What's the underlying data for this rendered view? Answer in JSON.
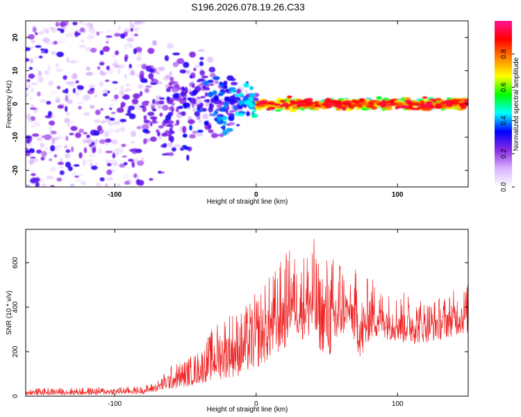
{
  "title": "S196.2026.078.19.26.C33",
  "chart_data": [
    {
      "type": "heatmap",
      "title": "S196.2026.078.19.26.C33",
      "xlabel": "Height of straight line (km)",
      "ylabel": "Frequency (Hz)",
      "xlim": [
        -163,
        150
      ],
      "ylim": [
        -25,
        25
      ],
      "xticks": [
        -100,
        0,
        100
      ],
      "yticks": [
        -20,
        -10,
        0,
        10,
        20
      ],
      "colorbar": {
        "label": "Normalized spectral amplitude",
        "range": [
          0,
          1
        ],
        "ticks": [
          0.0,
          0.2,
          0.4,
          0.6,
          0.8
        ],
        "tick_labels": [
          "0.0",
          "0.2",
          "0.4",
          "0.6",
          "0.8"
        ],
        "colormap": [
          "#ffffff",
          "#d9b3ff",
          "#8a2be2",
          "#0000ff",
          "#00ffff",
          "#00ff00",
          "#ffff00",
          "#ff8000",
          "#ff0000",
          "#ff1493"
        ]
      },
      "description": "Broadband noise spread across frequency for heights < -80 km, tightening toward 0 Hz between -80 and 0 km, and a narrow strong band centred at 0 Hz (amplitude 0.6-0.95) from 0 to 150 km"
    },
    {
      "type": "line",
      "xlabel": "Height of straight line (km)",
      "ylabel": "SNR (10 * v/v)",
      "xlim": [
        -163,
        150
      ],
      "ylim": [
        0,
        750
      ],
      "xticks": [
        -100,
        0,
        100
      ],
      "yticks": [
        0,
        200,
        400,
        600
      ],
      "series": [
        {
          "name": "SNR",
          "color": "#ee2222",
          "envelope": {
            "x": [
              -163,
              -120,
              -80,
              -70,
              -60,
              -50,
              -40,
              -30,
              -20,
              -10,
              0,
              10,
              20,
              25,
              30,
              35,
              40,
              45,
              50,
              55,
              60,
              65,
              70,
              75,
              80,
              90,
              100,
              110,
              120,
              130,
              140,
              150
            ],
            "low": [
              5,
              5,
              10,
              20,
              30,
              40,
              55,
              70,
              80,
              90,
              120,
              160,
              200,
              300,
              260,
              250,
              230,
              200,
              180,
              140,
              230,
              330,
              220,
              150,
              250,
              260,
              240,
              230,
              240,
              250,
              270,
              280
            ],
            "high": [
              35,
              40,
              45,
              70,
              140,
              170,
              210,
              320,
              400,
              390,
              470,
              550,
              640,
              680,
              600,
              680,
              745,
              580,
              650,
              640,
              690,
              470,
              580,
              470,
              560,
              480,
              470,
              470,
              440,
              450,
              480,
              510
            ]
          }
        }
      ]
    }
  ]
}
